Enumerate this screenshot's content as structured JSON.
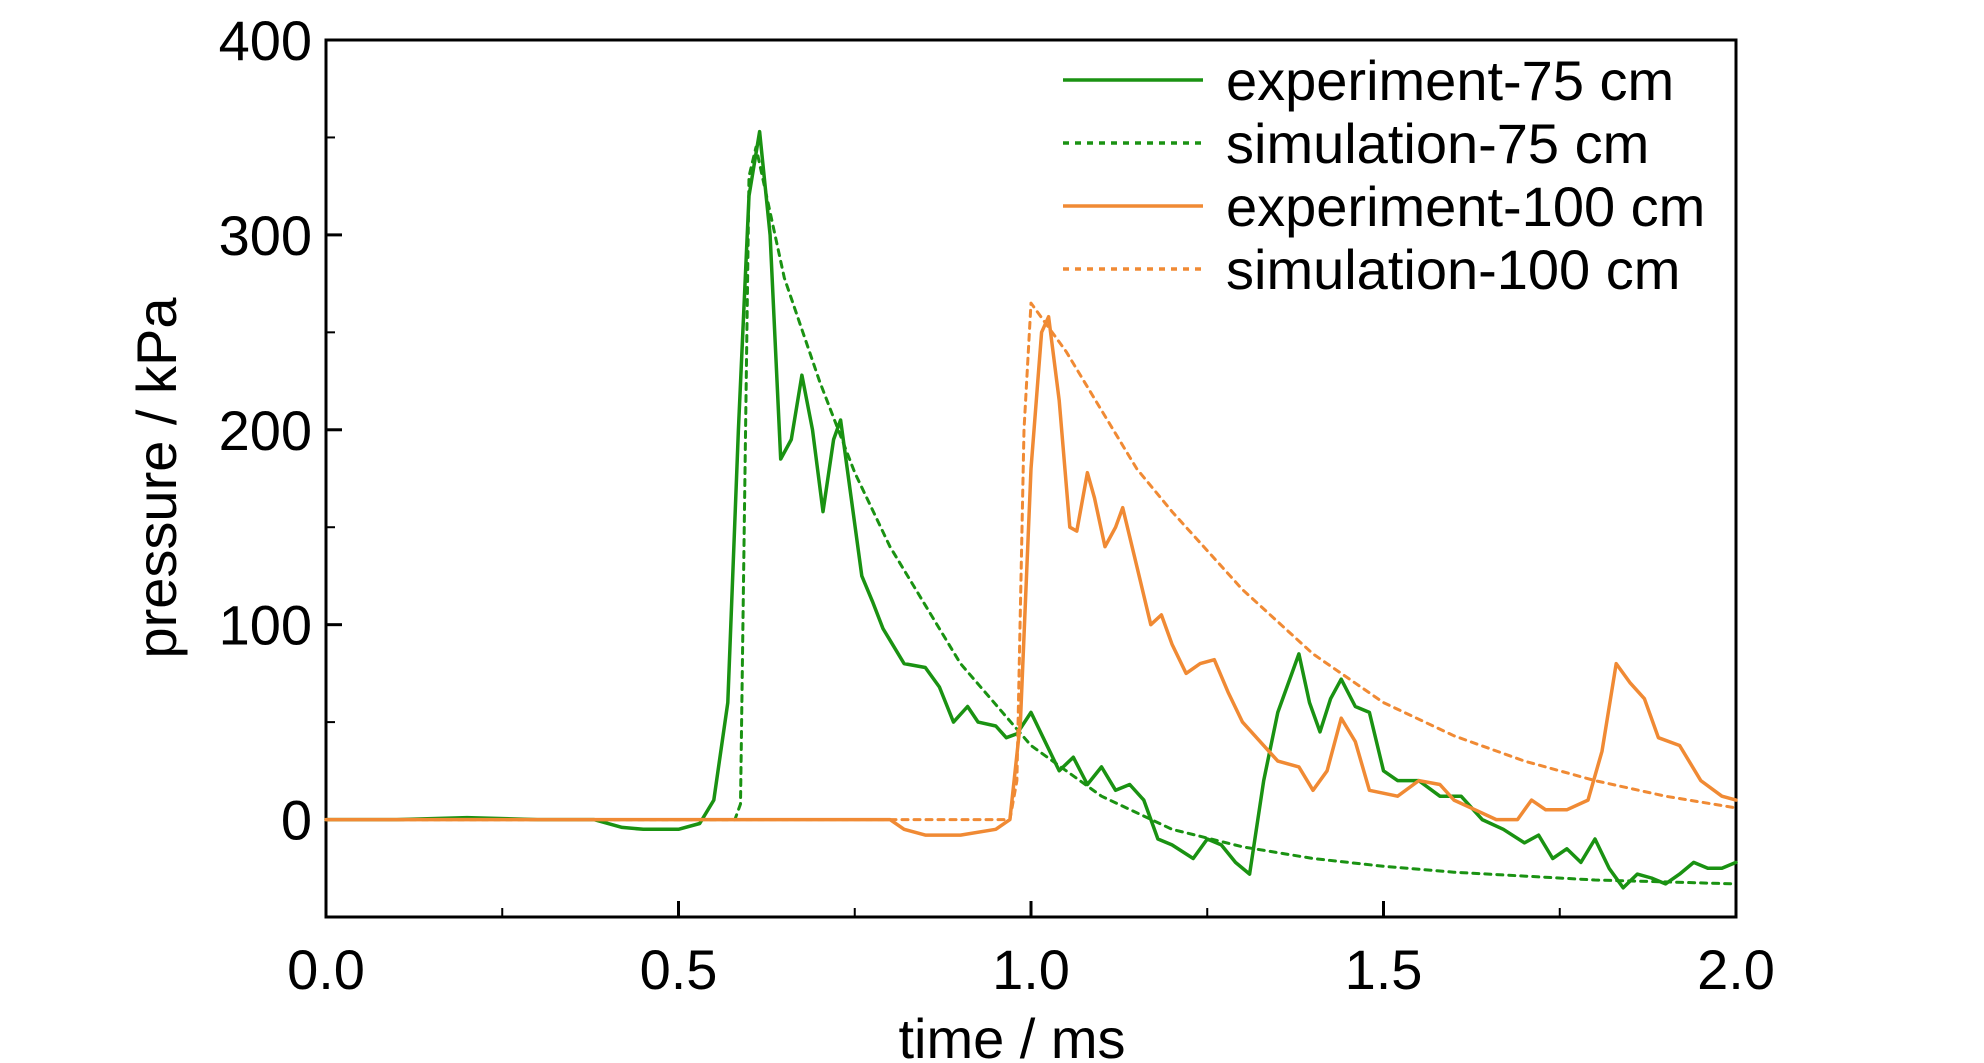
{
  "chart_data": {
    "type": "line",
    "xlabel": "time / ms",
    "ylabel": "pressure / kPa",
    "xlim": [
      0.0,
      2.0
    ],
    "ylim": [
      -50,
      400
    ],
    "xticks": [
      0.0,
      0.5,
      1.0,
      1.5,
      2.0
    ],
    "xtick_labels": [
      "0.0",
      "0.5",
      "1.0",
      "1.5",
      "2.0"
    ],
    "yticks": [
      0,
      100,
      200,
      300,
      400
    ],
    "ytick_labels": [
      "0",
      "100",
      "200",
      "300",
      "400"
    ],
    "grid": false,
    "legend_position": "top-right",
    "colors": {
      "green": "#1a9212",
      "orange": "#f08a34"
    },
    "series": [
      {
        "name": "experiment-75 cm",
        "color": "#1a9212",
        "style": "solid",
        "x": [
          0.0,
          0.1,
          0.2,
          0.3,
          0.38,
          0.42,
          0.45,
          0.5,
          0.53,
          0.55,
          0.57,
          0.585,
          0.6,
          0.615,
          0.63,
          0.645,
          0.66,
          0.675,
          0.69,
          0.705,
          0.72,
          0.73,
          0.745,
          0.76,
          0.775,
          0.79,
          0.82,
          0.85,
          0.87,
          0.89,
          0.91,
          0.925,
          0.95,
          0.965,
          0.98,
          1.0,
          1.02,
          1.04,
          1.06,
          1.08,
          1.1,
          1.12,
          1.14,
          1.16,
          1.18,
          1.2,
          1.23,
          1.25,
          1.27,
          1.29,
          1.31,
          1.33,
          1.35,
          1.38,
          1.395,
          1.41,
          1.425,
          1.44,
          1.46,
          1.48,
          1.5,
          1.52,
          1.55,
          1.58,
          1.61,
          1.64,
          1.67,
          1.7,
          1.72,
          1.74,
          1.76,
          1.78,
          1.8,
          1.82,
          1.84,
          1.86,
          1.88,
          1.9,
          1.92,
          1.94,
          1.96,
          1.98,
          2.0
        ],
        "y": [
          0,
          0,
          1,
          0,
          0,
          -4,
          -5,
          -5,
          -2,
          10,
          60,
          200,
          320,
          353,
          300,
          185,
          195,
          228,
          200,
          158,
          195,
          205,
          165,
          125,
          112,
          98,
          80,
          78,
          68,
          50,
          58,
          50,
          48,
          42,
          44,
          55,
          40,
          25,
          32,
          18,
          27,
          15,
          18,
          10,
          -10,
          -13,
          -20,
          -10,
          -13,
          -22,
          -28,
          20,
          55,
          85,
          60,
          45,
          62,
          72,
          58,
          55,
          25,
          20,
          20,
          12,
          12,
          0,
          -5,
          -12,
          -8,
          -20,
          -15,
          -22,
          -10,
          -25,
          -35,
          -28,
          -30,
          -33,
          -28,
          -22,
          -25,
          -25,
          -22
        ]
      },
      {
        "name": "simulation-75 cm",
        "color": "#1a9212",
        "style": "dotted",
        "x": [
          0.0,
          0.58,
          0.588,
          0.6,
          0.61,
          0.65,
          0.7,
          0.75,
          0.8,
          0.9,
          1.0,
          1.1,
          1.2,
          1.3,
          1.4,
          1.5,
          1.6,
          1.7,
          1.8,
          1.9,
          2.0
        ],
        "y": [
          0,
          0,
          8,
          330,
          345,
          278,
          225,
          178,
          140,
          80,
          38,
          12,
          -5,
          -14,
          -20,
          -24,
          -27,
          -29,
          -31,
          -32,
          -33
        ]
      },
      {
        "name": "experiment-100 cm",
        "color": "#f08a34",
        "style": "solid",
        "x": [
          0.0,
          0.3,
          0.5,
          0.7,
          0.8,
          0.82,
          0.85,
          0.9,
          0.95,
          0.97,
          0.985,
          1.0,
          1.015,
          1.025,
          1.04,
          1.055,
          1.065,
          1.08,
          1.09,
          1.105,
          1.12,
          1.13,
          1.15,
          1.17,
          1.185,
          1.2,
          1.22,
          1.24,
          1.26,
          1.28,
          1.3,
          1.35,
          1.38,
          1.4,
          1.42,
          1.44,
          1.46,
          1.48,
          1.52,
          1.55,
          1.58,
          1.6,
          1.63,
          1.66,
          1.69,
          1.71,
          1.73,
          1.76,
          1.79,
          1.81,
          1.83,
          1.85,
          1.87,
          1.89,
          1.92,
          1.95,
          1.98,
          2.0
        ],
        "y": [
          0,
          0,
          0,
          0,
          0,
          -5,
          -8,
          -8,
          -5,
          0,
          50,
          180,
          250,
          258,
          215,
          150,
          148,
          178,
          165,
          140,
          150,
          160,
          130,
          100,
          105,
          90,
          75,
          80,
          82,
          65,
          50,
          30,
          27,
          15,
          25,
          52,
          40,
          15,
          12,
          20,
          18,
          10,
          5,
          0,
          0,
          10,
          5,
          5,
          10,
          35,
          80,
          70,
          62,
          42,
          38,
          20,
          12,
          10
        ]
      },
      {
        "name": "simulation-100 cm",
        "color": "#f08a34",
        "style": "dotted",
        "x": [
          0.0,
          0.97,
          0.98,
          0.99,
          1.0,
          1.05,
          1.1,
          1.15,
          1.2,
          1.3,
          1.4,
          1.5,
          1.6,
          1.7,
          1.8,
          1.9,
          2.0
        ],
        "y": [
          0,
          0,
          20,
          200,
          265,
          240,
          210,
          180,
          158,
          118,
          85,
          60,
          43,
          30,
          20,
          12,
          6
        ]
      }
    ]
  }
}
